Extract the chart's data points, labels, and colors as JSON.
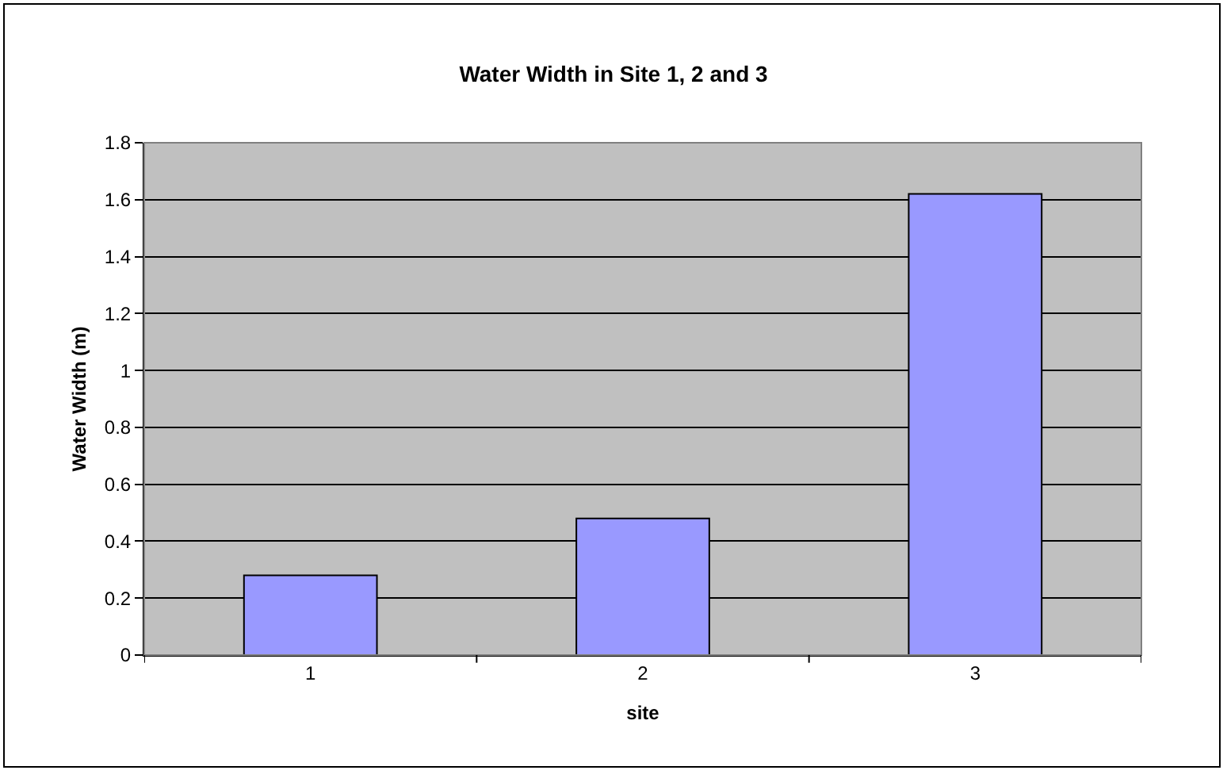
{
  "chart_data": {
    "type": "bar",
    "title": "Water Width in Site 1, 2 and 3",
    "xlabel": "site",
    "ylabel": "Water Width (m)",
    "categories": [
      "1",
      "2",
      "3"
    ],
    "values": [
      0.28,
      0.48,
      1.62
    ],
    "color": "#9999ff",
    "ylim": [
      0,
      1.8
    ],
    "yticks": [
      0,
      0.2,
      0.4,
      0.6,
      0.8,
      1,
      1.2,
      1.4,
      1.6,
      1.8
    ],
    "grid": "y",
    "legend": false
  }
}
